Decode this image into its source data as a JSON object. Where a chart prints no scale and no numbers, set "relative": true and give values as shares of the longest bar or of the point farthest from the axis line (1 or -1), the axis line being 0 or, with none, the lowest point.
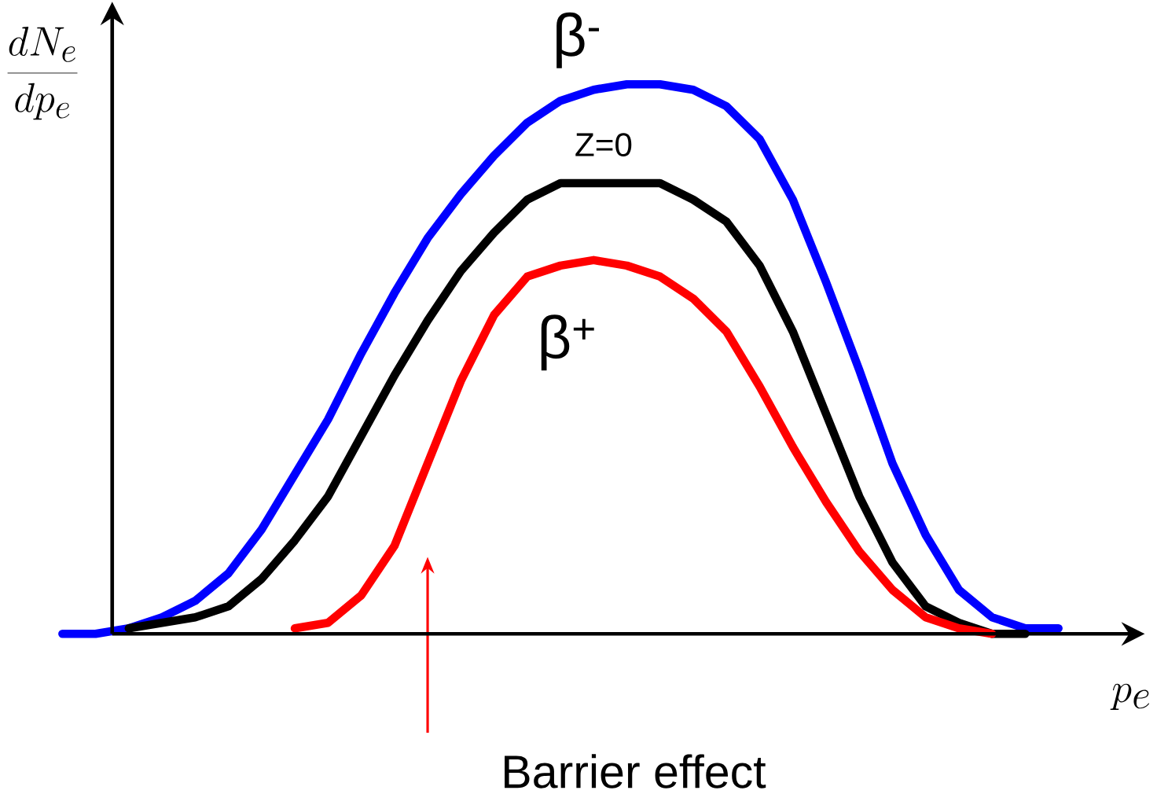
{
  "chart_data": {
    "type": "line",
    "relative": true,
    "xlabel": "p_e",
    "ylabel": "\\frac{dN_e}{dp_e}",
    "categories": [
      null,
      null,
      null,
      null,
      null,
      null,
      null,
      null,
      null,
      null,
      null,
      null,
      null,
      null,
      null,
      null,
      null,
      null,
      null,
      null,
      null,
      null,
      null,
      null,
      null,
      null,
      null,
      null,
      null,
      null,
      null
    ],
    "series": [
      {
        "name": "β$^{-}$",
        "color": "#0000ff",
        "values": [
          0,
          0,
          0.01,
          0.03,
          0.06,
          0.11,
          0.19,
          0.29,
          0.39,
          0.51,
          0.62,
          0.72,
          0.8,
          0.87,
          0.93,
          0.97,
          0.99,
          1.0,
          1.0,
          0.99,
          0.96,
          0.9,
          0.79,
          0.64,
          0.48,
          0.31,
          0.18,
          0.08,
          0.03,
          0.01,
          0.01
        ]
      },
      {
        "name": "Z=0",
        "color": "#000000",
        "values": [
          null,
          null,
          0.01,
          0.02,
          0.03,
          0.05,
          0.1,
          0.17,
          0.25,
          0.36,
          0.47,
          0.57,
          0.66,
          0.73,
          0.79,
          0.82,
          0.82,
          0.82,
          0.82,
          0.79,
          0.75,
          0.67,
          0.55,
          0.4,
          0.25,
          0.13,
          0.05,
          0.02,
          0,
          0,
          null
        ]
      },
      {
        "name": "β$^{+}$",
        "color": "#ff0000",
        "values": [
          null,
          null,
          null,
          null,
          null,
          null,
          null,
          0.01,
          0.02,
          0.07,
          0.16,
          0.31,
          0.46,
          0.58,
          0.65,
          0.67,
          0.68,
          0.67,
          0.65,
          0.61,
          0.55,
          0.45,
          0.34,
          0.24,
          0.15,
          0.08,
          0.03,
          0.01,
          0,
          null,
          null
        ]
      }
    ],
    "annotations": [
      "Barrier effect"
    ]
  }
}
